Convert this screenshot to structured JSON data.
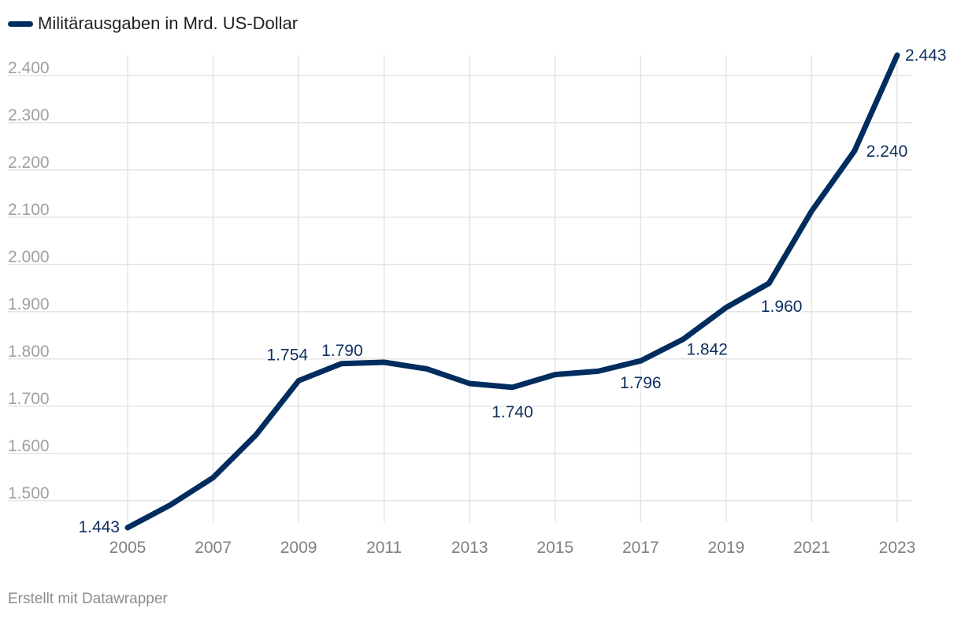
{
  "chart_data": {
    "type": "line",
    "legend": {
      "placement": "top-left"
    },
    "grid": true,
    "x": [
      2005,
      2006,
      2007,
      2008,
      2009,
      2010,
      2011,
      2012,
      2013,
      2014,
      2015,
      2016,
      2017,
      2018,
      2019,
      2020,
      2021,
      2022,
      2023
    ],
    "series": [
      {
        "name": "Militärausgaben in Mrd. US-Dollar",
        "color": "#002d5e",
        "values": [
          1443,
          1491,
          1549,
          1639,
          1754,
          1790,
          1793,
          1779,
          1748,
          1740,
          1767,
          1774,
          1796,
          1842,
          1909,
          1960,
          2113,
          2240,
          2443
        ]
      }
    ],
    "xlim": [
      2005,
      2023
    ],
    "ylim": [
      1443,
      2443
    ],
    "x_ticks": [
      "2005",
      "2007",
      "2009",
      "2011",
      "2013",
      "2015",
      "2017",
      "2019",
      "2021",
      "2023"
    ],
    "y_ticks": [
      "1.500",
      "1.600",
      "1.700",
      "1.800",
      "1.900",
      "2.000",
      "2.100",
      "2.200",
      "2.300",
      "2.400"
    ],
    "data_labels": [
      {
        "year": 2005,
        "text": "1.443"
      },
      {
        "year": 2009,
        "text": "1.754"
      },
      {
        "year": 2010,
        "text": "1.790"
      },
      {
        "year": 2014,
        "text": "1.740"
      },
      {
        "year": 2017,
        "text": "1.796"
      },
      {
        "year": 2018,
        "text": "1.842"
      },
      {
        "year": 2020,
        "text": "1.960"
      },
      {
        "year": 2022,
        "text": "2.240"
      },
      {
        "year": 2023,
        "text": "2.443"
      }
    ]
  },
  "footer": {
    "text": "Erstellt mit Datawrapper"
  },
  "colors": {
    "line": "#002d5e",
    "label": "#0d2f5e",
    "grid": "#e4e4e4",
    "tick": "#a0a0a0"
  }
}
